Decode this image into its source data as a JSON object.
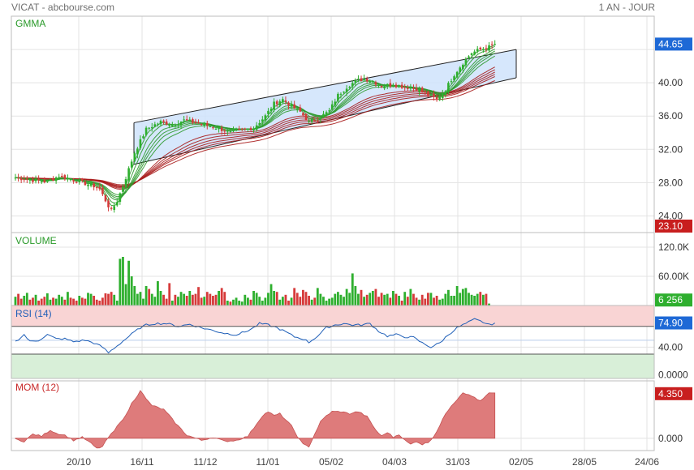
{
  "header": {
    "title": "VICAT - abcbourse.com",
    "period": "1 AN - JOUR"
  },
  "colors": {
    "up": "#2eaf2e",
    "down": "#d63a3a",
    "grid": "#e3e3e3",
    "border": "#bdbdbd",
    "channel": "#cfe3fb",
    "rsi_line": "#1f5fb8",
    "rsi_over": "#f9d4d4",
    "rsi_under": "#d8efd8",
    "mom_fill": "#de7b7b",
    "last_blue": "#1e69d6",
    "last_red": "#c81e1e",
    "gmma_short": "#2e9a2e",
    "gmma_long": "#a81c1c"
  },
  "x_axis": {
    "labels": [
      "20/10",
      "16/11",
      "11/12",
      "11/01",
      "05/02",
      "04/03",
      "31/03",
      "02/05",
      "28/05",
      "24/06"
    ]
  },
  "chart_data": [
    {
      "type": "candlestick",
      "panel": "price",
      "title": "GMMA",
      "ylim": [
        22,
        48
      ],
      "y_ticks": [
        "24.00",
        "28.00",
        "32.00",
        "36.00",
        "40.00",
        "44.65"
      ],
      "last_value": "44.65",
      "low_marker": "23.10",
      "overlays": [
        "gmma-short-averages",
        "gmma-long-averages",
        "trend-channel"
      ],
      "close_anchors": [
        [
          0,
          28.6
        ],
        [
          6,
          28.3
        ],
        [
          11,
          28.1
        ],
        [
          15,
          28.8
        ],
        [
          19,
          28.4
        ],
        [
          23,
          28.0
        ],
        [
          27,
          27.6
        ],
        [
          29,
          27.2
        ],
        [
          32,
          25.2
        ],
        [
          33,
          24.6
        ],
        [
          35,
          25.8
        ],
        [
          37,
          27.6
        ],
        [
          39,
          29.6
        ],
        [
          41,
          31.6
        ],
        [
          43,
          33.0
        ],
        [
          45,
          34.4
        ],
        [
          47,
          34.8
        ],
        [
          50,
          35.3
        ],
        [
          54,
          35.0
        ],
        [
          58,
          35.5
        ],
        [
          62,
          35.2
        ],
        [
          66,
          34.9
        ],
        [
          70,
          34.5
        ],
        [
          74,
          34.0
        ],
        [
          78,
          34.3
        ],
        [
          82,
          34.6
        ],
        [
          86,
          36.0
        ],
        [
          89,
          37.5
        ],
        [
          92,
          38.0
        ],
        [
          95,
          37.2
        ],
        [
          98,
          36.5
        ],
        [
          101,
          35.3
        ],
        [
          104,
          35.7
        ],
        [
          108,
          36.6
        ],
        [
          111,
          38.5
        ],
        [
          114,
          39.5
        ],
        [
          117,
          40.2
        ],
        [
          120,
          40.5
        ],
        [
          123,
          40.2
        ],
        [
          126,
          39.6
        ],
        [
          130,
          39.8
        ],
        [
          134,
          39.5
        ],
        [
          138,
          39.3
        ],
        [
          142,
          38.5
        ],
        [
          145,
          38.0
        ],
        [
          148,
          39.2
        ],
        [
          151,
          41.0
        ],
        [
          154,
          42.4
        ],
        [
          157,
          43.6
        ],
        [
          160,
          44.0
        ],
        [
          163,
          44.3
        ],
        [
          165,
          44.65
        ]
      ]
    },
    {
      "type": "bar",
      "panel": "volume",
      "title": "VOLUME",
      "ylim": [
        0,
        150
      ],
      "y_ticks": [
        "120.0K",
        "60.00K"
      ],
      "last_value": "6 256",
      "values": [
        18,
        24,
        14,
        20,
        26,
        12,
        16,
        22,
        10,
        14,
        18,
        25,
        12,
        16,
        14,
        22,
        18,
        12,
        28,
        16,
        14,
        10,
        20,
        16,
        14,
        26,
        24,
        20,
        12,
        10,
        16,
        25,
        24,
        28,
        22,
        10,
        96,
        100,
        44,
        92,
        60,
        40,
        24,
        28,
        14,
        40,
        34,
        24,
        18,
        50,
        30,
        22,
        14,
        46,
        10,
        22,
        18,
        28,
        24,
        20,
        30,
        22,
        24,
        38,
        16,
        18,
        28,
        24,
        20,
        22,
        30,
        36,
        28,
        10,
        8,
        12,
        16,
        10,
        8,
        22,
        16,
        12,
        30,
        26,
        18,
        10,
        16,
        26,
        44,
        30,
        28,
        12,
        18,
        22,
        10,
        16,
        36,
        26,
        18,
        32,
        28,
        20,
        12,
        16,
        36,
        24,
        18,
        10,
        14,
        16,
        24,
        28,
        22,
        18,
        34,
        26,
        66,
        40,
        24,
        32,
        18,
        22,
        26,
        30,
        34,
        18,
        26,
        22,
        24,
        16,
        30,
        24,
        20,
        10,
        28,
        18,
        34,
        24,
        16,
        12,
        22,
        14,
        26,
        26,
        16,
        20,
        12,
        14,
        24,
        32,
        20,
        20,
        40,
        26,
        34,
        36,
        26,
        22,
        20,
        24,
        28,
        22,
        24,
        4
      ]
    },
    {
      "type": "line",
      "panel": "rsi",
      "title": "RSI (14)",
      "ylim": [
        -5,
        100
      ],
      "y_ticks": [
        "40.00",
        "0.0000"
      ],
      "levels": [
        70,
        30
      ],
      "last_value": "74.90",
      "anchors": [
        [
          0,
          48
        ],
        [
          3,
          58
        ],
        [
          5,
          48
        ],
        [
          8,
          50
        ],
        [
          11,
          58
        ],
        [
          14,
          52
        ],
        [
          17,
          52
        ],
        [
          20,
          48
        ],
        [
          24,
          50
        ],
        [
          27,
          46
        ],
        [
          30,
          40
        ],
        [
          32,
          32
        ],
        [
          35,
          42
        ],
        [
          38,
          52
        ],
        [
          41,
          62
        ],
        [
          43,
          68
        ],
        [
          45,
          72
        ],
        [
          48,
          74
        ],
        [
          52,
          74
        ],
        [
          56,
          70
        ],
        [
          60,
          73
        ],
        [
          64,
          68
        ],
        [
          68,
          64
        ],
        [
          72,
          60
        ],
        [
          76,
          58
        ],
        [
          79,
          62
        ],
        [
          82,
          68
        ],
        [
          84,
          74
        ],
        [
          87,
          72
        ],
        [
          90,
          68
        ],
        [
          93,
          62
        ],
        [
          96,
          55
        ],
        [
          99,
          52
        ],
        [
          101,
          47
        ],
        [
          104,
          56
        ],
        [
          107,
          68
        ],
        [
          110,
          72
        ],
        [
          113,
          74
        ],
        [
          116,
          72
        ],
        [
          119,
          72
        ],
        [
          122,
          74
        ],
        [
          125,
          63
        ],
        [
          128,
          56
        ],
        [
          131,
          58
        ],
        [
          134,
          55
        ],
        [
          137,
          54
        ],
        [
          140,
          46
        ],
        [
          143,
          40
        ],
        [
          146,
          46
        ],
        [
          149,
          58
        ],
        [
          152,
          68
        ],
        [
          155,
          74
        ],
        [
          158,
          80
        ],
        [
          161,
          76
        ],
        [
          163,
          72
        ],
        [
          165,
          74.9
        ]
      ]
    },
    {
      "type": "area",
      "panel": "mom",
      "title": "MOM (12)",
      "ylim": [
        -1.2,
        5.6
      ],
      "y_ticks": [
        "0.000"
      ],
      "last_value": "4.350",
      "anchors": [
        [
          0,
          -0.1
        ],
        [
          3,
          -0.3
        ],
        [
          6,
          0.4
        ],
        [
          9,
          0.2
        ],
        [
          12,
          0.8
        ],
        [
          14,
          0.5
        ],
        [
          17,
          0.3
        ],
        [
          20,
          -0.2
        ],
        [
          23,
          0.1
        ],
        [
          26,
          -0.5
        ],
        [
          28,
          -1.0
        ],
        [
          30,
          -0.8
        ],
        [
          32,
          0.1
        ],
        [
          34,
          0.7
        ],
        [
          36,
          1.6
        ],
        [
          38,
          2.2
        ],
        [
          40,
          3.4
        ],
        [
          42,
          4.2
        ],
        [
          43,
          4.7
        ],
        [
          45,
          3.8
        ],
        [
          47,
          3.2
        ],
        [
          49,
          3.0
        ],
        [
          51,
          2.8
        ],
        [
          53,
          2.2
        ],
        [
          55,
          1.5
        ],
        [
          57,
          0.9
        ],
        [
          59,
          0.3
        ],
        [
          61,
          0.1
        ],
        [
          64,
          -0.2
        ],
        [
          68,
          0.1
        ],
        [
          72,
          -0.3
        ],
        [
          76,
          -0.2
        ],
        [
          80,
          0.2
        ],
        [
          83,
          1.4
        ],
        [
          85,
          2.2
        ],
        [
          87,
          2.6
        ],
        [
          89,
          2.2
        ],
        [
          91,
          2.4
        ],
        [
          93,
          1.8
        ],
        [
          95,
          1.2
        ],
        [
          97,
          0.2
        ],
        [
          99,
          -0.6
        ],
        [
          101,
          -0.8
        ],
        [
          103,
          0.4
        ],
        [
          105,
          1.6
        ],
        [
          107,
          2.2
        ],
        [
          109,
          2.6
        ],
        [
          112,
          2.6
        ],
        [
          115,
          2.4
        ],
        [
          118,
          2.6
        ],
        [
          121,
          2.1
        ],
        [
          124,
          0.8
        ],
        [
          126,
          0.2
        ],
        [
          128,
          0.6
        ],
        [
          130,
          0.1
        ],
        [
          132,
          0.4
        ],
        [
          134,
          -0.2
        ],
        [
          136,
          -0.6
        ],
        [
          138,
          -0.3
        ],
        [
          140,
          -0.6
        ],
        [
          142,
          -0.4
        ],
        [
          144,
          0.2
        ],
        [
          146,
          1.2
        ],
        [
          148,
          2.4
        ],
        [
          150,
          3.2
        ],
        [
          152,
          3.8
        ],
        [
          154,
          4.5
        ],
        [
          156,
          4.2
        ],
        [
          158,
          4.0
        ],
        [
          160,
          3.6
        ],
        [
          163,
          4.4
        ],
        [
          165,
          4.35
        ]
      ]
    }
  ]
}
